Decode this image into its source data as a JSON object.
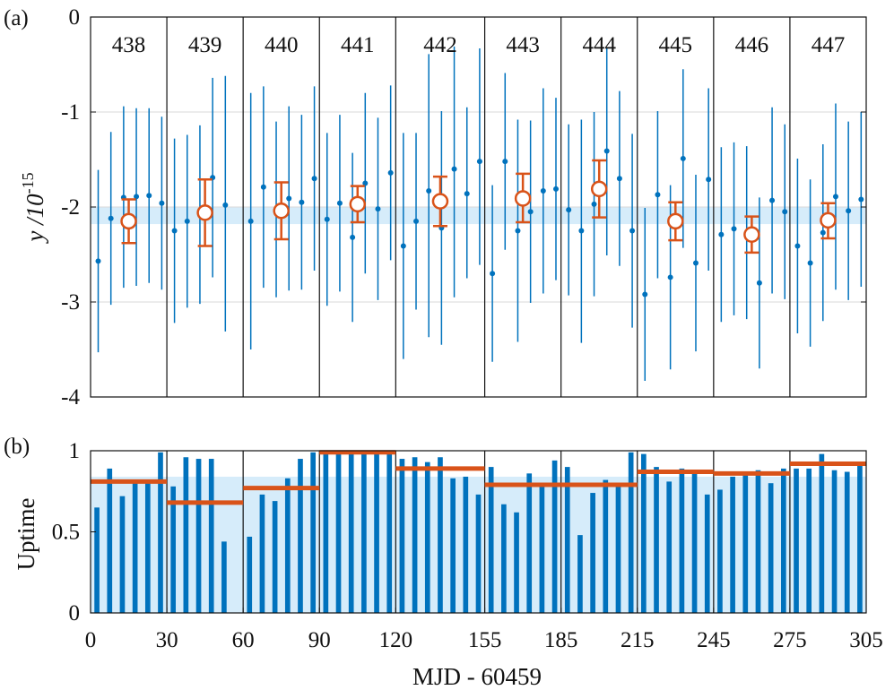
{
  "colors": {
    "blue": "#0072BD",
    "orange": "#D95319",
    "band": "#d6ecfa",
    "grid": "#d9d9d9"
  },
  "chart_data": [
    {
      "id": "a",
      "panel_tag": "(a)",
      "type": "scatter",
      "ylabel_main": "y /10",
      "ylabel_exp": "-15",
      "ylim": [
        -4,
        0
      ],
      "yticks": [
        0,
        -1,
        -2,
        -3,
        -4
      ],
      "ytick_labels": [
        "0",
        "-1",
        "-2",
        "-3",
        "-4"
      ],
      "xlim": [
        0,
        305
      ],
      "band": [
        -2.18,
        -2.0
      ],
      "segment_edges": [
        0,
        30,
        60,
        90,
        120,
        155,
        185,
        215,
        245,
        275,
        305
      ],
      "segment_labels": [
        "438",
        "439",
        "440",
        "441",
        "442",
        "443",
        "444",
        "445",
        "446",
        "447"
      ],
      "daily": [
        {
          "x": 3,
          "y": -2.57,
          "lo": -3.53,
          "hi": -1.61
        },
        {
          "x": 8,
          "y": -2.12,
          "lo": -3.03,
          "hi": -1.21
        },
        {
          "x": 13,
          "y": -1.9,
          "lo": -2.85,
          "hi": -0.94
        },
        {
          "x": 18,
          "y": -1.89,
          "lo": -2.83,
          "hi": -0.96
        },
        {
          "x": 23,
          "y": -1.88,
          "lo": -2.8,
          "hi": -0.96
        },
        {
          "x": 28,
          "y": -1.96,
          "lo": -2.87,
          "hi": -1.05
        },
        {
          "x": 33,
          "y": -2.25,
          "lo": -3.22,
          "hi": -1.28
        },
        {
          "x": 38,
          "y": -2.15,
          "lo": -3.06,
          "hi": -1.24
        },
        {
          "x": 43,
          "y": -2.08,
          "lo": -3.02,
          "hi": -1.14
        },
        {
          "x": 48,
          "y": -1.69,
          "lo": -2.74,
          "hi": -0.64
        },
        {
          "x": 53,
          "y": -1.98,
          "lo": -3.31,
          "hi": -0.62
        },
        {
          "x": 63,
          "y": -2.15,
          "lo": -3.5,
          "hi": -0.8
        },
        {
          "x": 68,
          "y": -1.79,
          "lo": -2.85,
          "hi": -0.73
        },
        {
          "x": 73,
          "y": -2.03,
          "lo": -2.95,
          "hi": -1.1
        },
        {
          "x": 78,
          "y": -1.91,
          "lo": -2.88,
          "hi": -0.94
        },
        {
          "x": 83,
          "y": -1.95,
          "lo": -2.87,
          "hi": -1.03
        },
        {
          "x": 88,
          "y": -1.7,
          "lo": -2.67,
          "hi": -0.73
        },
        {
          "x": 93,
          "y": -2.13,
          "lo": -3.04,
          "hi": -1.22
        },
        {
          "x": 98,
          "y": -1.96,
          "lo": -2.89,
          "hi": -1.03
        },
        {
          "x": 103,
          "y": -2.32,
          "lo": -3.21,
          "hi": -1.43
        },
        {
          "x": 108,
          "y": -1.75,
          "lo": -2.7,
          "hi": -0.8
        },
        {
          "x": 113,
          "y": -2.02,
          "lo": -2.98,
          "hi": -1.06
        },
        {
          "x": 118,
          "y": -1.64,
          "lo": -2.56,
          "hi": -0.72
        },
        {
          "x": 123,
          "y": -2.41,
          "lo": -3.6,
          "hi": -1.22
        },
        {
          "x": 128,
          "y": -2.15,
          "lo": -3.08,
          "hi": -1.22
        },
        {
          "x": 133,
          "y": -1.83,
          "lo": -3.37,
          "hi": -0.39
        },
        {
          "x": 138,
          "y": -2.22,
          "lo": -3.45,
          "hi": -0.99
        },
        {
          "x": 143,
          "y": -1.6,
          "lo": -2.95,
          "hi": -0.31
        },
        {
          "x": 148,
          "y": -1.86,
          "lo": -2.75,
          "hi": -0.95
        },
        {
          "x": 153,
          "y": -1.52,
          "lo": -2.61,
          "hi": -0.33
        },
        {
          "x": 158,
          "y": -2.7,
          "lo": -3.63,
          "hi": -1.77
        },
        {
          "x": 163,
          "y": -1.52,
          "lo": -2.45,
          "hi": -0.59
        },
        {
          "x": 168,
          "y": -2.25,
          "lo": -3.42,
          "hi": -1.08
        },
        {
          "x": 173,
          "y": -2.05,
          "lo": -3.01,
          "hi": -1.09
        },
        {
          "x": 178,
          "y": -1.83,
          "lo": -2.91,
          "hi": -0.75
        },
        {
          "x": 183,
          "y": -1.81,
          "lo": -2.77,
          "hi": -0.85
        },
        {
          "x": 188,
          "y": -2.03,
          "lo": -2.93,
          "hi": -1.13
        },
        {
          "x": 193,
          "y": -2.25,
          "lo": -3.43,
          "hi": -1.08
        },
        {
          "x": 198,
          "y": -1.97,
          "lo": -2.94,
          "hi": -1.0
        },
        {
          "x": 203,
          "y": -1.41,
          "lo": -2.51,
          "hi": -0.32
        },
        {
          "x": 208,
          "y": -1.7,
          "lo": -2.62,
          "hi": -0.78
        },
        {
          "x": 213,
          "y": -2.25,
          "lo": -3.27,
          "hi": -1.23
        },
        {
          "x": 218,
          "y": -2.92,
          "lo": -3.83,
          "hi": -2.01
        },
        {
          "x": 223,
          "y": -1.87,
          "lo": -2.75,
          "hi": -0.99
        },
        {
          "x": 228,
          "y": -2.74,
          "lo": -3.71,
          "hi": -1.77
        },
        {
          "x": 233,
          "y": -1.49,
          "lo": -2.43,
          "hi": -0.55
        },
        {
          "x": 238,
          "y": -2.59,
          "lo": -3.52,
          "hi": -1.66
        },
        {
          "x": 243,
          "y": -1.71,
          "lo": -2.67,
          "hi": -0.75
        },
        {
          "x": 248,
          "y": -2.29,
          "lo": -3.21,
          "hi": -1.37
        },
        {
          "x": 253,
          "y": -2.23,
          "lo": -3.14,
          "hi": -1.32
        },
        {
          "x": 258,
          "y": -2.27,
          "lo": -3.18,
          "hi": -1.36
        },
        {
          "x": 263,
          "y": -2.8,
          "lo": -3.7,
          "hi": -1.9
        },
        {
          "x": 268,
          "y": -1.93,
          "lo": -2.91,
          "hi": -0.95
        },
        {
          "x": 273,
          "y": -2.05,
          "lo": -2.97,
          "hi": -1.13
        },
        {
          "x": 278,
          "y": -2.41,
          "lo": -3.33,
          "hi": -1.49
        },
        {
          "x": 283,
          "y": -2.59,
          "lo": -3.47,
          "hi": -1.71
        },
        {
          "x": 288,
          "y": -2.27,
          "lo": -3.2,
          "hi": -1.34
        },
        {
          "x": 293,
          "y": -1.89,
          "lo": -2.87,
          "hi": -0.91
        },
        {
          "x": 298,
          "y": -2.04,
          "lo": -2.98,
          "hi": -1.1
        },
        {
          "x": 303,
          "y": -1.92,
          "lo": -2.84,
          "hi": -1.0
        }
      ],
      "segment_means": [
        {
          "x": 15,
          "y": -2.15,
          "lo": -2.38,
          "hi": -1.92
        },
        {
          "x": 45,
          "y": -2.06,
          "lo": -2.41,
          "hi": -1.71
        },
        {
          "x": 75,
          "y": -2.04,
          "lo": -2.34,
          "hi": -1.74
        },
        {
          "x": 105,
          "y": -1.97,
          "lo": -2.16,
          "hi": -1.78
        },
        {
          "x": 137.5,
          "y": -1.94,
          "lo": -2.2,
          "hi": -1.68
        },
        {
          "x": 170,
          "y": -1.91,
          "lo": -2.16,
          "hi": -1.65
        },
        {
          "x": 200,
          "y": -1.81,
          "lo": -2.11,
          "hi": -1.51
        },
        {
          "x": 230,
          "y": -2.15,
          "lo": -2.35,
          "hi": -1.95
        },
        {
          "x": 260,
          "y": -2.29,
          "lo": -2.48,
          "hi": -2.1
        },
        {
          "x": 290,
          "y": -2.14,
          "lo": -2.33,
          "hi": -1.96
        }
      ]
    },
    {
      "id": "b",
      "panel_tag": "(b)",
      "type": "bar",
      "ylabel": "Uptime",
      "xlabel": "MJD - 60459",
      "ylim": [
        0,
        1
      ],
      "yticks": [
        0,
        0.5,
        1
      ],
      "ytick_labels": [
        "0",
        "0.5",
        "1"
      ],
      "xlim": [
        0,
        305
      ],
      "xticks": [
        0,
        30,
        60,
        90,
        120,
        155,
        185,
        215,
        245,
        275,
        305
      ],
      "xtick_labels": [
        "0",
        "30",
        "60",
        "90",
        "120",
        "155",
        "185",
        "215",
        "245",
        "275",
        "305"
      ],
      "band_top": 0.84,
      "segment_edges": [
        0,
        30,
        60,
        90,
        120,
        155,
        185,
        215,
        245,
        275,
        305
      ],
      "segment_means": [
        0.81,
        0.68,
        0.77,
        0.99,
        0.89,
        0.79,
        0.79,
        0.87,
        0.86,
        0.92
      ],
      "bar_width": 2.0,
      "bars": [
        {
          "x": 2.5,
          "v": 0.65
        },
        {
          "x": 7.5,
          "v": 0.89
        },
        {
          "x": 12.5,
          "v": 0.72
        },
        {
          "x": 17.5,
          "v": 0.8
        },
        {
          "x": 22.5,
          "v": 0.81
        },
        {
          "x": 27.5,
          "v": 0.99
        },
        {
          "x": 32.5,
          "v": 0.78
        },
        {
          "x": 37.5,
          "v": 0.96
        },
        {
          "x": 42.5,
          "v": 0.95
        },
        {
          "x": 47.5,
          "v": 0.95
        },
        {
          "x": 52.5,
          "v": 0.44
        },
        {
          "x": 57.5,
          "v": 0.0
        },
        {
          "x": 62.5,
          "v": 0.47
        },
        {
          "x": 67.5,
          "v": 0.73
        },
        {
          "x": 72.5,
          "v": 0.69
        },
        {
          "x": 77.5,
          "v": 0.83
        },
        {
          "x": 82.5,
          "v": 0.95
        },
        {
          "x": 87.5,
          "v": 0.99
        },
        {
          "x": 92.5,
          "v": 0.99
        },
        {
          "x": 97.5,
          "v": 0.99
        },
        {
          "x": 102.5,
          "v": 0.99
        },
        {
          "x": 107.5,
          "v": 0.99
        },
        {
          "x": 112.5,
          "v": 0.99
        },
        {
          "x": 117.5,
          "v": 0.99
        },
        {
          "x": 122.5,
          "v": 0.95
        },
        {
          "x": 127.5,
          "v": 0.96
        },
        {
          "x": 132.5,
          "v": 0.93
        },
        {
          "x": 137.5,
          "v": 0.96
        },
        {
          "x": 142.5,
          "v": 0.83
        },
        {
          "x": 147.5,
          "v": 0.84
        },
        {
          "x": 152.5,
          "v": 0.73
        },
        {
          "x": 157.5,
          "v": 0.9
        },
        {
          "x": 162.5,
          "v": 0.67
        },
        {
          "x": 167.5,
          "v": 0.62
        },
        {
          "x": 172.5,
          "v": 0.86
        },
        {
          "x": 177.5,
          "v": 0.8
        },
        {
          "x": 182.5,
          "v": 0.94
        },
        {
          "x": 187.5,
          "v": 0.9
        },
        {
          "x": 192.5,
          "v": 0.48
        },
        {
          "x": 197.5,
          "v": 0.74
        },
        {
          "x": 202.5,
          "v": 0.82
        },
        {
          "x": 207.5,
          "v": 0.8
        },
        {
          "x": 212.5,
          "v": 0.99
        },
        {
          "x": 217.5,
          "v": 0.98
        },
        {
          "x": 222.5,
          "v": 0.9
        },
        {
          "x": 227.5,
          "v": 0.81
        },
        {
          "x": 232.5,
          "v": 0.89
        },
        {
          "x": 237.5,
          "v": 0.88
        },
        {
          "x": 242.5,
          "v": 0.73
        },
        {
          "x": 247.5,
          "v": 0.76
        },
        {
          "x": 252.5,
          "v": 0.84
        },
        {
          "x": 257.5,
          "v": 0.85
        },
        {
          "x": 262.5,
          "v": 0.88
        },
        {
          "x": 267.5,
          "v": 0.8
        },
        {
          "x": 272.5,
          "v": 0.89
        },
        {
          "x": 277.5,
          "v": 0.89
        },
        {
          "x": 282.5,
          "v": 0.89
        },
        {
          "x": 287.5,
          "v": 0.98
        },
        {
          "x": 292.5,
          "v": 0.88
        },
        {
          "x": 297.5,
          "v": 0.87
        },
        {
          "x": 302.5,
          "v": 0.91
        }
      ]
    }
  ]
}
